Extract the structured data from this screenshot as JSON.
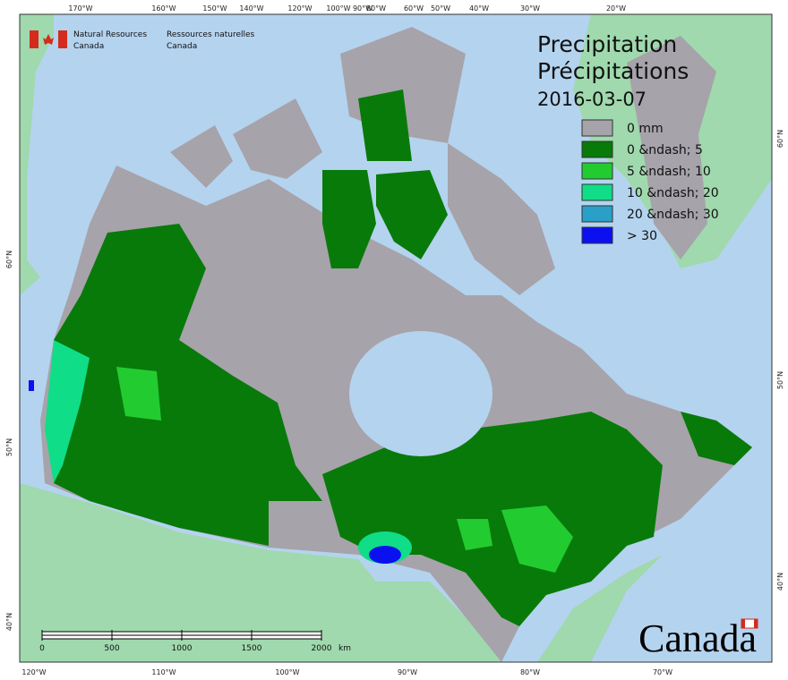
{
  "header": {
    "department_en": [
      "Natural Resources",
      "Canada"
    ],
    "department_fr": [
      "Ressources naturelles",
      "Canada"
    ]
  },
  "title": {
    "en": "Precipitation",
    "fr": "Précipitations",
    "date": "2016-03-07"
  },
  "legend": [
    {
      "label": "0 mm",
      "color": "#a7a3aa"
    },
    {
      "label": "0 &ndash; 5",
      "color": "#087a0a"
    },
    {
      "label": "5 &ndash; 10",
      "color": "#22cc30"
    },
    {
      "label": "10 &ndash; 20",
      "color": "#10dd88"
    },
    {
      "label": "20 &ndash; 30",
      "color": "#2aa0c8"
    },
    {
      "label": "> 30",
      "color": "#0a10f0"
    }
  ],
  "graticule": {
    "top": [
      "170°W",
      "160°W",
      "150°W",
      "140°W",
      "120°W",
      "100°W",
      "90°W",
      "80°W",
      "60°W",
      "50°W",
      "40°W",
      "30°W",
      "20°W"
    ],
    "bottom": [
      "120°W",
      "110°W",
      "100°W",
      "90°W",
      "80°W",
      "70°W"
    ],
    "left": [
      "60°N",
      "50°N",
      "40°N"
    ],
    "right": [
      "60°N",
      "50°N",
      "40°N"
    ]
  },
  "scale_bar": {
    "ticks": [
      "0",
      "500",
      "1000",
      "1500",
      "2000"
    ],
    "unit": "km"
  },
  "wordmark": "Canada"
}
